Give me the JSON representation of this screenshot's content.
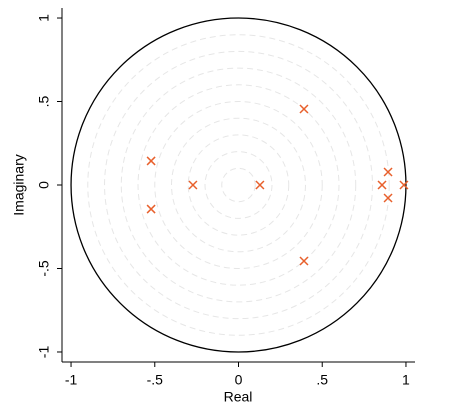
{
  "chart_data": {
    "type": "scatter",
    "x_label": "Real",
    "y_label": "Imaginary",
    "x": [
      -0.522,
      -0.522,
      -0.272,
      0.128,
      0.391,
      0.391,
      0.857,
      0.893,
      0.893,
      0.988
    ],
    "values": [
      0.144,
      -0.144,
      0,
      0,
      0.455,
      -0.455,
      0,
      0.078,
      -0.078,
      0
    ],
    "color": "#e8602c",
    "xlim": [
      -1.054,
      1.054
    ],
    "ylim": [
      -1.06,
      1.06
    ],
    "xticks": [
      -1,
      {
        "value": -0.5,
        "label": "-.5"
      },
      0,
      {
        "value": 0.5,
        "label": ".5"
      },
      1
    ],
    "yticks": [
      -1,
      {
        "value": -0.5,
        "label": "-.5"
      },
      0,
      {
        "value": 0.5,
        "label": ".5"
      },
      1
    ],
    "grid": true
  }
}
